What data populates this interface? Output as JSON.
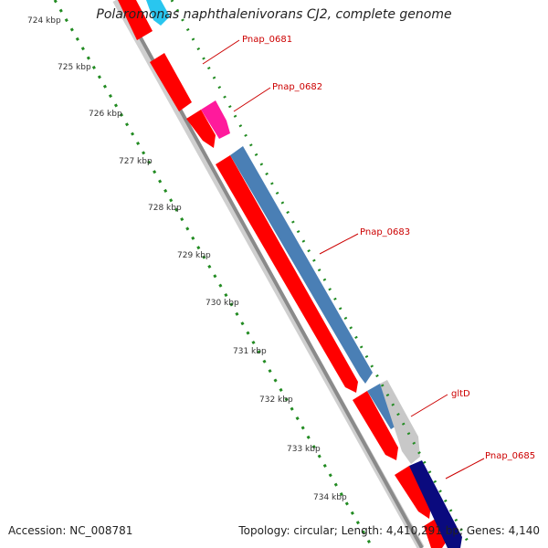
{
  "title": "Polaromonas naphthalenivorans CJ2, complete genome",
  "footer": {
    "accession": "Accession: NC_008781",
    "stats": "Topology: circular; Length: 4,410,291 bp; Genes: 4,140"
  },
  "scale_labels": [
    "724 kbp",
    "725 kbp",
    "726 kbp",
    "727 kbp",
    "728 kbp",
    "729 kbp",
    "730 kbp",
    "731 kbp",
    "732 kbp",
    "733 kbp",
    "734 kbp"
  ],
  "gene_labels": [
    "Pnap_0681",
    "Pnap_0682",
    "Pnap_0683",
    "gltD",
    "Pnap_0685"
  ],
  "colors": {
    "red": "#ff0000",
    "pink": "#ff1a9c",
    "cyan": "#29c6ef",
    "steel_blue": "#4a7fb5",
    "light_gray": "#c8c8c8",
    "navy": "#0a0a7e",
    "backbone": "#8a8a8a",
    "ticks": "#228b22",
    "label_text": "#cc0000"
  }
}
